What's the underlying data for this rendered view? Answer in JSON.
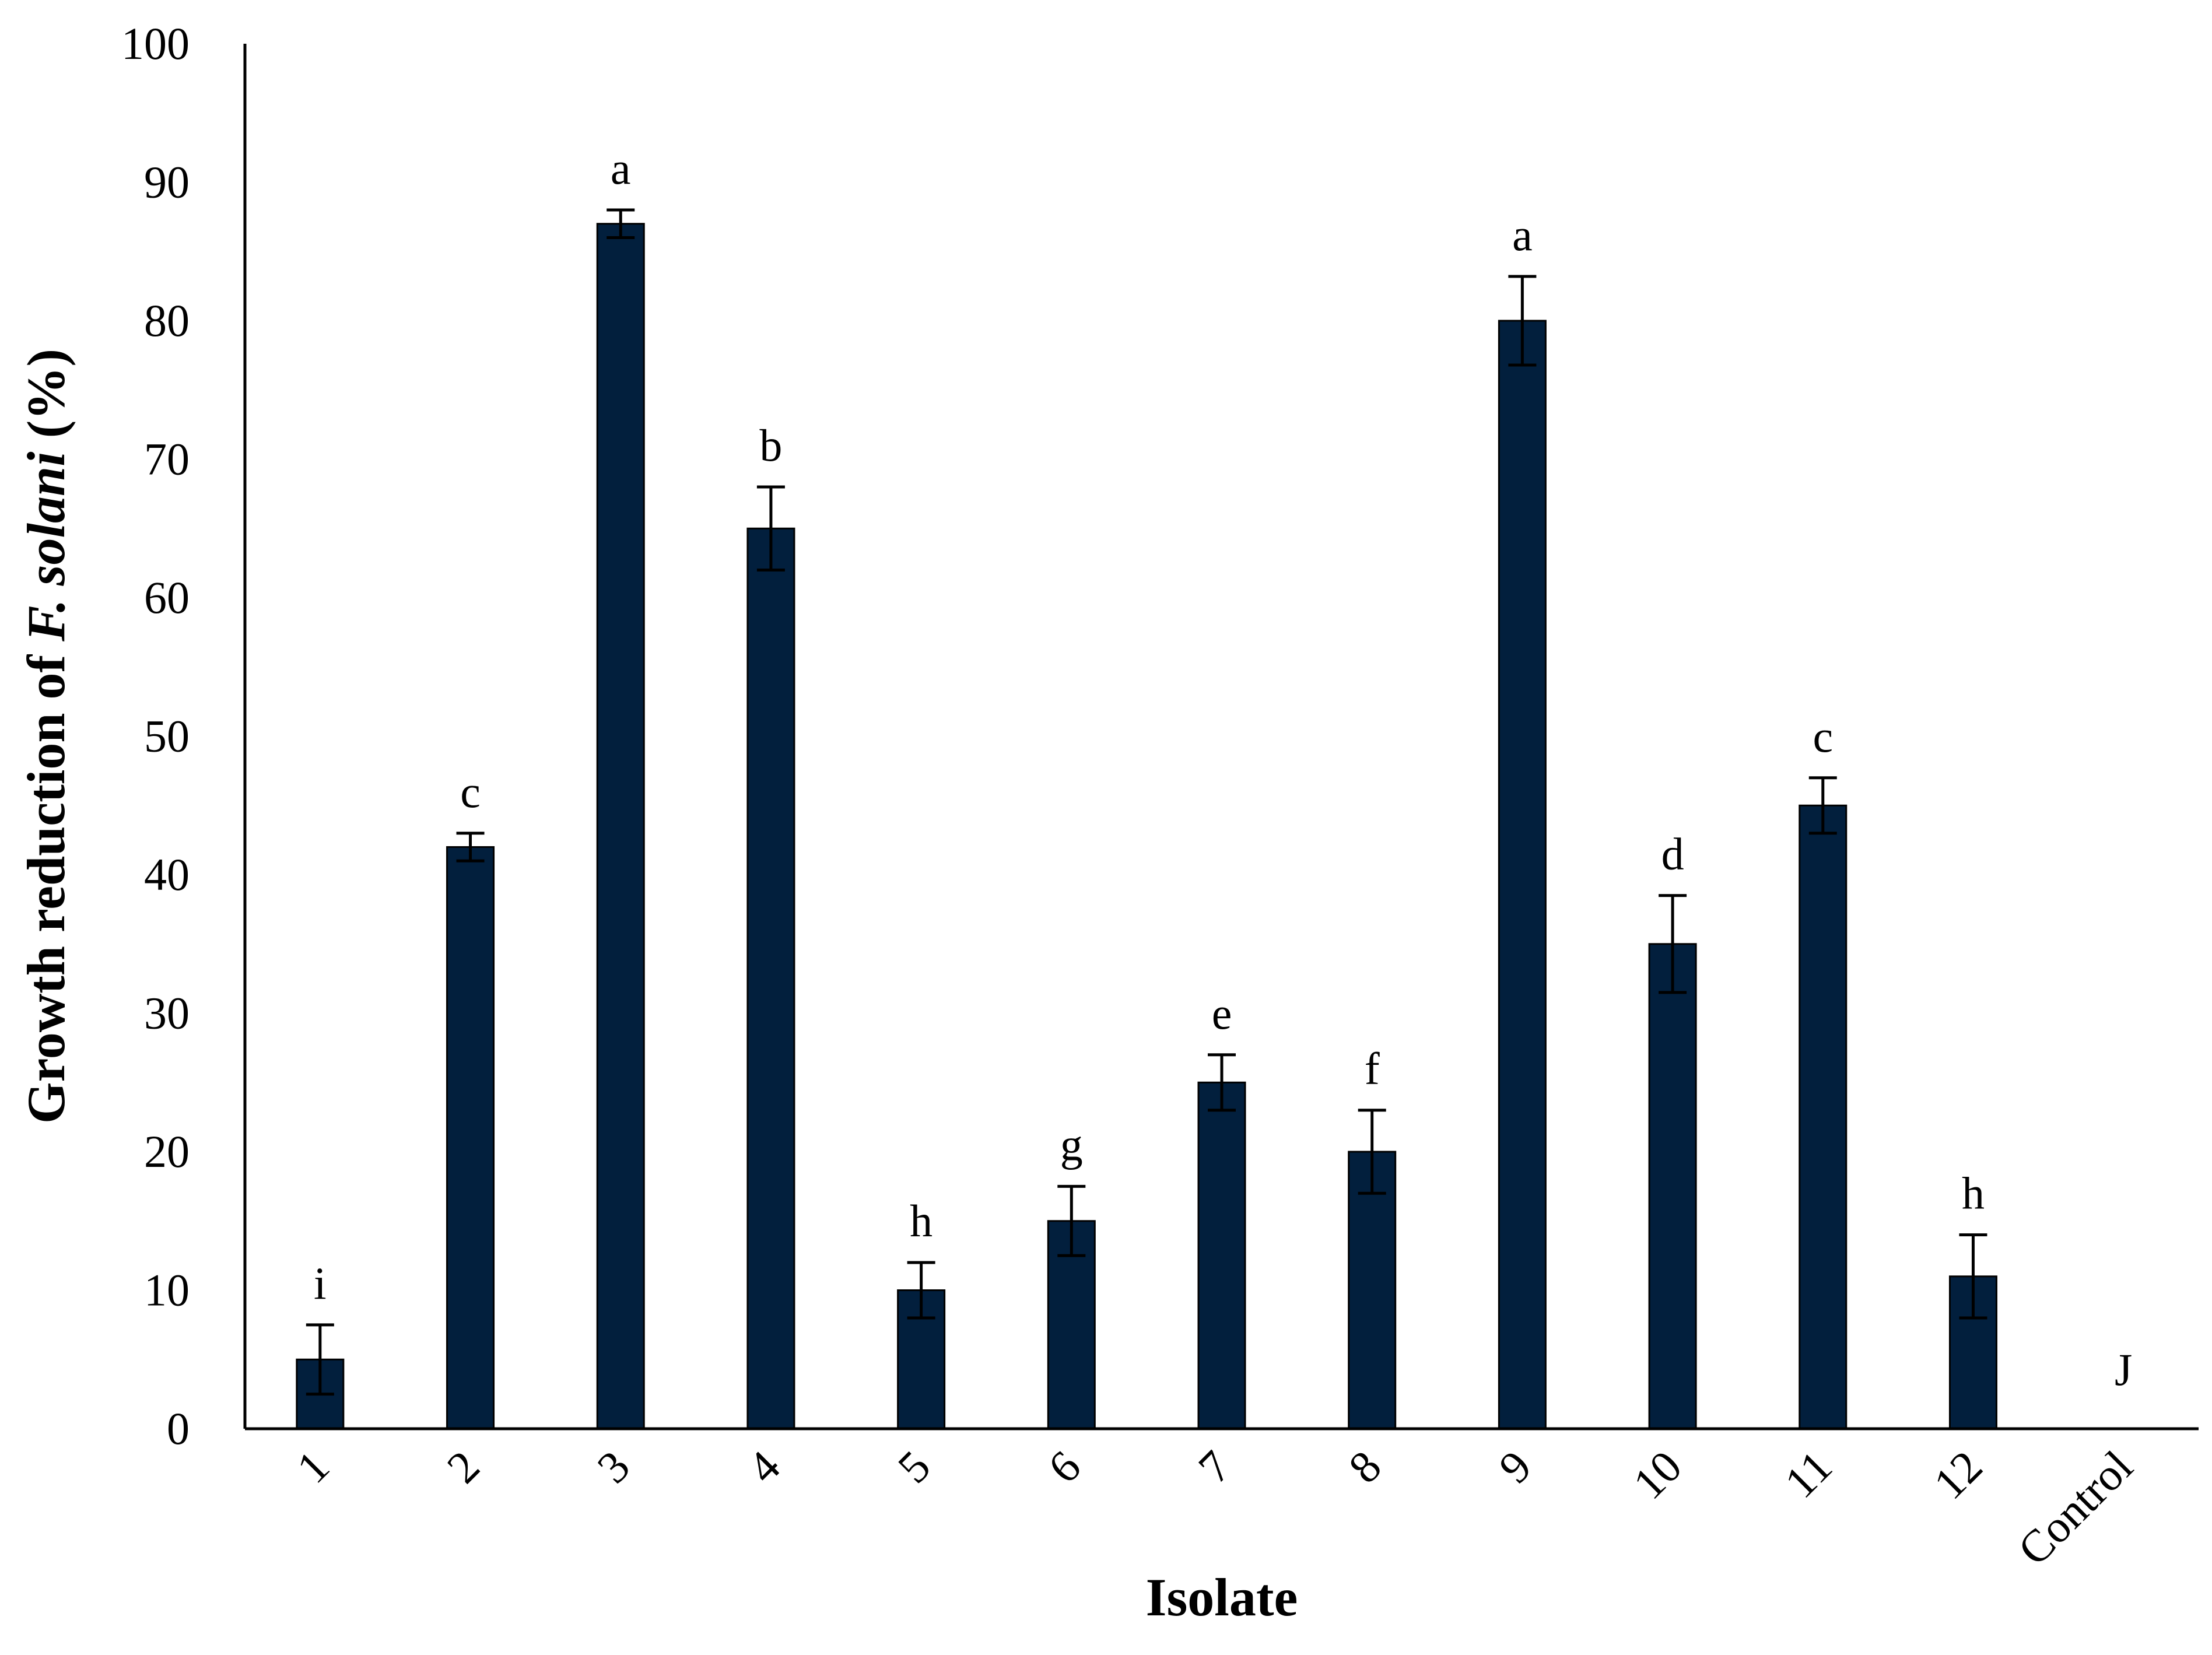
{
  "chart_data": {
    "type": "bar",
    "xlabel": "Isolate",
    "ylabel_prefix": "Growth reduction of ",
    "ylabel_italic": "F. solani",
    "ylabel_suffix": " (%)",
    "ylim": [
      0,
      100
    ],
    "yticks": [
      "0",
      "10",
      "20",
      "30",
      "40",
      "50",
      "60",
      "70",
      "80",
      "90",
      "100"
    ],
    "categories": [
      "1",
      "2",
      "3",
      "4",
      "5",
      "6",
      "7",
      "8",
      "9",
      "10",
      "11",
      "12",
      "Control"
    ],
    "values": [
      5,
      42,
      87,
      65,
      10,
      15,
      25,
      20,
      80,
      35,
      45,
      11,
      0
    ],
    "errors": [
      2.5,
      1,
      1,
      3,
      2,
      2.5,
      2,
      3,
      3.2,
      3.5,
      2,
      3,
      0
    ],
    "significance": [
      "i",
      "c",
      "a",
      "b",
      "h",
      "g",
      "e",
      "f",
      "a",
      "d",
      "c",
      "h",
      "J"
    ],
    "grid": false,
    "legend": "none",
    "bar_color": "#021f3d"
  }
}
